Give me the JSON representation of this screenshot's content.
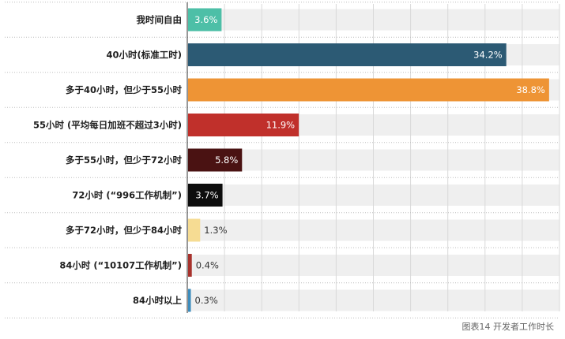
{
  "chart_data": {
    "type": "bar",
    "orientation": "horizontal",
    "title": "",
    "xlabel": "",
    "ylabel": "",
    "xlim": [
      0,
      40
    ],
    "grid": true,
    "value_suffix": "%",
    "categories": [
      "我时间自由",
      "40小时(标准工时)",
      "多于40小时，但少于55小时",
      "55小时 (平均每日加班不超过3小时)",
      "多于55小时，但少于72小时",
      "72小时 (“996工作机制”)",
      "多于72小时，但少于84小时",
      "84小时 (“10107工作机制”)",
      "84小时以上"
    ],
    "values": [
      3.6,
      34.2,
      38.8,
      11.9,
      5.8,
      3.7,
      1.3,
      0.4,
      0.3
    ],
    "value_labels": [
      "3.6%",
      "34.2%",
      "38.8%",
      "11.9%",
      "5.8%",
      "3.7%",
      "1.3%",
      "0.4%",
      "0.3%"
    ],
    "colors": [
      "#4dbfa7",
      "#2c5a74",
      "#ee9435",
      "#c0302b",
      "#4a1212",
      "#0d0d0d",
      "#f6dc93",
      "#a8322c",
      "#3d8dbd"
    ],
    "label_colors": [
      "#ffffff",
      "#ffffff",
      "#ffffff",
      "#ffffff",
      "#ffffff",
      "#ffffff",
      "#333333",
      "#333333",
      "#333333"
    ],
    "track_color": "#efefef"
  },
  "caption": "图表14 开发者工作时长"
}
